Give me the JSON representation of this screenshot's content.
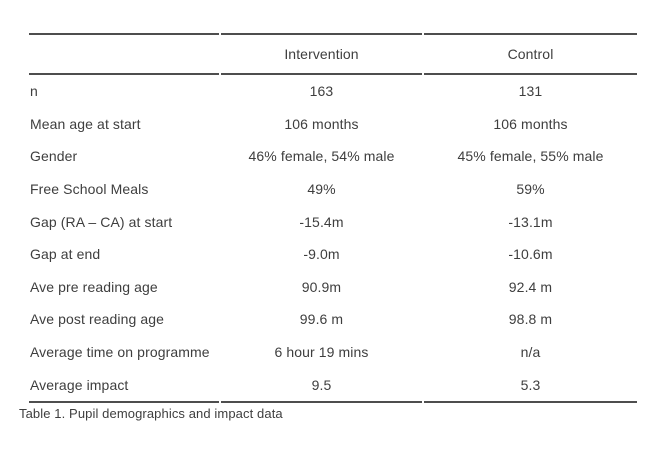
{
  "table": {
    "columns": [
      "",
      "Intervention",
      "Control"
    ],
    "rows": [
      {
        "label": "n",
        "intervention": "163",
        "control": "131"
      },
      {
        "label": "Mean age at start",
        "intervention": "106 months",
        "control": "106 months"
      },
      {
        "label": "Gender",
        "intervention": "46% female, 54% male",
        "control": "45% female, 55% male"
      },
      {
        "label": "Free School Meals",
        "intervention": "49%",
        "control": "59%"
      },
      {
        "label": "Gap (RA – CA) at start",
        "intervention": "-15.4m",
        "control": "-13.1m"
      },
      {
        "label": "Gap at end",
        "intervention": "-9.0m",
        "control": "-10.6m"
      },
      {
        "label": "Ave pre reading age",
        "intervention": "90.9m",
        "control": "92.4 m"
      },
      {
        "label": "Ave post reading age",
        "intervention": "99.6 m",
        "control": "98.8 m"
      },
      {
        "label": "Average time on programme",
        "intervention": "6 hour 19 mins",
        "control": "n/a"
      },
      {
        "label": "Average impact",
        "intervention": "9.5",
        "control": "5.3"
      }
    ],
    "caption": "Table 1. Pupil demographics and impact data"
  },
  "colors": {
    "text": "#3e3e3e",
    "rule": "#4e4e4e",
    "background": "#ffffff"
  }
}
